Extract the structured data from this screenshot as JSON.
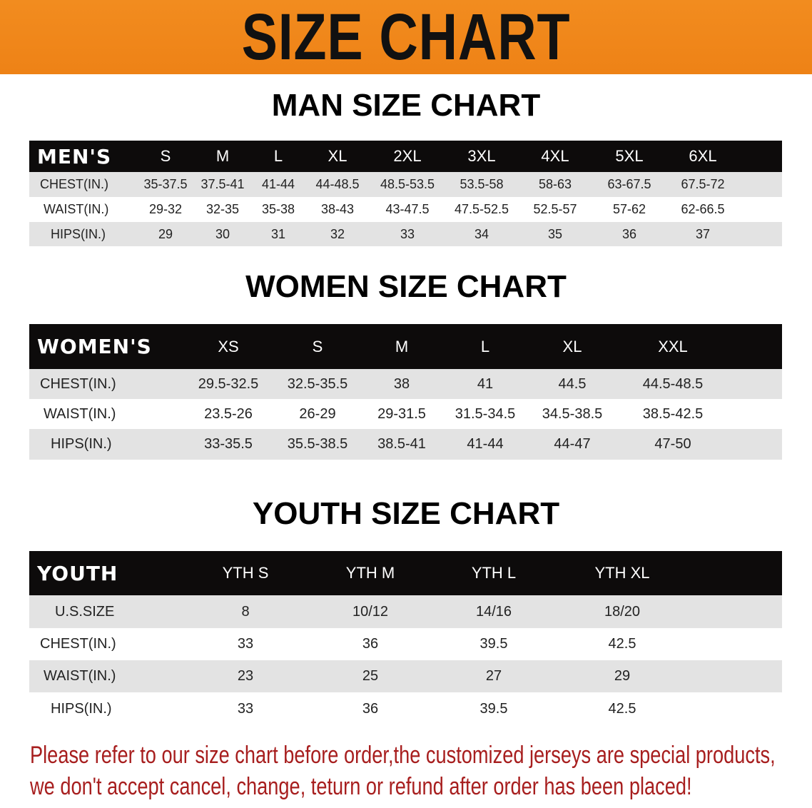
{
  "banner": {
    "title": "SIZE CHART",
    "color": "#f08a1e"
  },
  "men": {
    "title": "MAN SIZE CHART",
    "header": "MEN'S",
    "sizes": [
      "S",
      "M",
      "L",
      "XL",
      "2XL",
      "3XL",
      "4XL",
      "5XL",
      "6XL"
    ],
    "rows": [
      {
        "label": "CHEST(IN.)",
        "values": [
          "35-37.5",
          "37.5-41",
          "41-44",
          "44-48.5",
          "48.5-53.5",
          "53.5-58",
          "58-63",
          "63-67.5",
          "67.5-72"
        ]
      },
      {
        "label": "WAIST(IN.)",
        "values": [
          "29-32",
          "32-35",
          "35-38",
          "38-43",
          "43-47.5",
          "47.5-52.5",
          "52.5-57",
          "57-62",
          "62-66.5"
        ]
      },
      {
        "label": "HIPS(IN.)",
        "values": [
          "29",
          "30",
          "31",
          "32",
          "33",
          "34",
          "35",
          "36",
          "37"
        ]
      }
    ]
  },
  "women": {
    "title": "WOMEN SIZE CHART",
    "header": "WOMEN'S",
    "sizes": [
      "XS",
      "S",
      "M",
      "L",
      "XL",
      "XXL"
    ],
    "rows": [
      {
        "label": "CHEST(IN.)",
        "values": [
          "29.5-32.5",
          "32.5-35.5",
          "38",
          "41",
          "44.5",
          "44.5-48.5"
        ]
      },
      {
        "label": "WAIST(IN.)",
        "values": [
          "23.5-26",
          "26-29",
          "29-31.5",
          "31.5-34.5",
          "34.5-38.5",
          "38.5-42.5"
        ]
      },
      {
        "label": "HIPS(IN.)",
        "values": [
          "33-35.5",
          "35.5-38.5",
          "38.5-41",
          "41-44",
          "44-47",
          "47-50"
        ]
      }
    ]
  },
  "youth": {
    "title": "YOUTH SIZE CHART",
    "header": "YOUTH",
    "sizes": [
      "YTH S",
      "YTH M",
      "YTH L",
      "YTH XL"
    ],
    "rows": [
      {
        "label": "U.S.SIZE",
        "values": [
          "8",
          "10/12",
          "14/16",
          "18/20"
        ]
      },
      {
        "label": "CHEST(IN.)",
        "values": [
          "33",
          "36",
          "39.5",
          "42.5"
        ]
      },
      {
        "label": "WAIST(IN.)",
        "values": [
          "23",
          "25",
          "27",
          "29"
        ]
      },
      {
        "label": "HIPS(IN.)",
        "values": [
          "33",
          "36",
          "39.5",
          "42.5"
        ]
      }
    ]
  },
  "notice": {
    "line1": "Please refer to our size chart before order,the customized jerseys are special products,",
    "line2": "we don't accept cancel, change, teturn or refund after order has been placed!",
    "color": "#a71e1e"
  }
}
